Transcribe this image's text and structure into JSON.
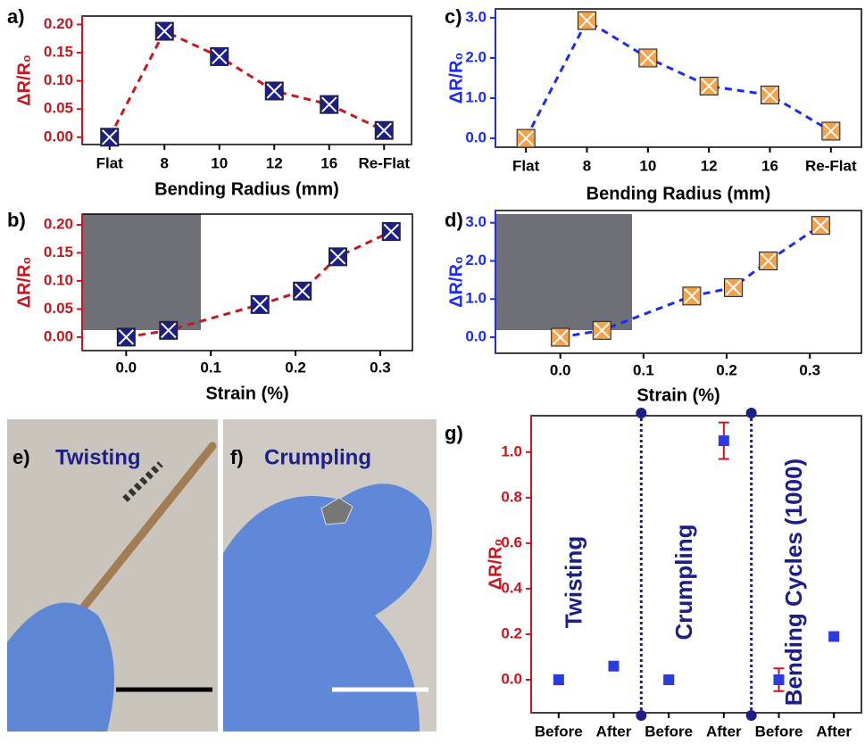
{
  "chart_data": [
    {
      "type": "line",
      "label": "a)",
      "xlabel": "Bending Radius (mm)",
      "ylabel": "ΔR/R₀",
      "categories": [
        "Flat",
        "8",
        "10",
        "12",
        "16",
        "Re-Flat"
      ],
      "values": [
        0,
        0.188,
        0.143,
        0.082,
        0.058,
        0.012
      ],
      "color": "#c8161d",
      "marker_color": "#1c1f86",
      "ylim": [
        -0.013,
        0.215
      ],
      "yticks": [
        {
          "value": 0,
          "label": "0.00"
        },
        0.05,
        {
          "value": 0.1,
          "label": "0.10"
        },
        0.15,
        {
          "value": 0.2,
          "label": "0.20"
        }
      ]
    },
    {
      "type": "scatter",
      "label": "b)",
      "xlabel": "Strain (%)",
      "ylabel": "ΔR/R₀",
      "x": [
        0,
        0.05,
        0.158,
        0.208,
        0.25,
        0.313
      ],
      "values": [
        0,
        0.012,
        0.058,
        0.082,
        0.143,
        0.188
      ],
      "color": "#c8161d",
      "marker_color": "#1c1f86",
      "xlim": [
        -0.052,
        0.338
      ],
      "xticks": [
        {
          "value": 0,
          "label": "0.0"
        },
        0.1,
        0.2,
        0.3
      ],
      "ylim": [
        -0.024,
        0.219
      ],
      "yticks": [
        {
          "value": 0,
          "label": "0.00"
        },
        0.05,
        {
          "value": 0.1,
          "label": "0.10"
        },
        0.15,
        {
          "value": 0.2,
          "label": "0.20"
        }
      ]
    },
    {
      "type": "line",
      "label": "c)",
      "xlabel": "Bending Radius (mm)",
      "ylabel": "ΔR/R₀",
      "categories": [
        "Flat",
        "8",
        "10",
        "12",
        "16",
        "Re-Flat"
      ],
      "values": [
        0,
        2.93,
        2.0,
        1.3,
        1.08,
        0.18
      ],
      "color": "#1a2cf0",
      "marker_color": "#f5a04a",
      "ylim": [
        -0.22,
        3.22
      ],
      "yticks": [
        {
          "value": 0,
          "label": "0.0"
        },
        {
          "value": 1,
          "label": "1.0"
        },
        {
          "value": 2,
          "label": "2.0"
        },
        {
          "value": 3,
          "label": "3.0"
        }
      ]
    },
    {
      "type": "scatter",
      "label": "d)",
      "xlabel": "Strain (%)",
      "ylabel": "ΔR/R₀",
      "x": [
        0,
        0.05,
        0.158,
        0.208,
        0.25,
        0.313
      ],
      "values": [
        0,
        0.18,
        1.08,
        1.3,
        2.0,
        2.93
      ],
      "color": "#1a2cf0",
      "marker_color": "#f5a04a",
      "xlim": [
        -0.078,
        0.362
      ],
      "xticks": [
        {
          "value": 0,
          "label": "0.0"
        },
        0.1,
        0.2,
        0.3
      ],
      "ylim": [
        -0.42,
        3.32
      ],
      "yticks": [
        {
          "value": 0,
          "label": "0.0"
        },
        {
          "value": 1,
          "label": "1.0"
        },
        {
          "value": 2,
          "label": "2.0"
        },
        {
          "value": 3,
          "label": "3.0"
        }
      ]
    },
    {
      "type": "errorbar",
      "label": "g)",
      "ylabel": "ΔR/R₀",
      "categories": [
        "Before",
        "After",
        "Before",
        "After",
        "Before",
        "After"
      ],
      "values": [
        0,
        0.06,
        0,
        1.05,
        0,
        0.19
      ],
      "errors": [
        0.02,
        0.01,
        0.01,
        0.08,
        0.05,
        0.015
      ],
      "color": "#c8161d",
      "marker_color": "#2b3be0",
      "ylim": [
        -0.145,
        1.16
      ],
      "yticks": [
        {
          "value": 0,
          "label": "0.0"
        },
        0.2,
        0.4,
        0.6,
        0.8,
        {
          "value": 1,
          "label": "1.0"
        }
      ],
      "annotations": [
        "Twisting",
        "Crumpling",
        "Bending Cycles (1000)"
      ]
    }
  ],
  "photos": [
    {
      "label": "e)",
      "caption": "Twisting"
    },
    {
      "label": "f)",
      "caption": "Crumpling"
    }
  ]
}
